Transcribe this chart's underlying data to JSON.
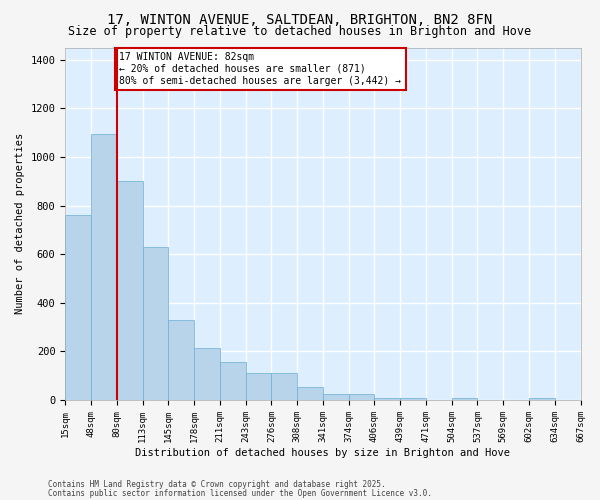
{
  "title": "17, WINTON AVENUE, SALTDEAN, BRIGHTON, BN2 8FN",
  "subtitle": "Size of property relative to detached houses in Brighton and Hove",
  "xlabel": "Distribution of detached houses by size in Brighton and Hove",
  "ylabel": "Number of detached properties",
  "footer_line1": "Contains HM Land Registry data © Crown copyright and database right 2025.",
  "footer_line2": "Contains public sector information licensed under the Open Government Licence v3.0.",
  "bins": [
    "15sqm",
    "48sqm",
    "80sqm",
    "113sqm",
    "145sqm",
    "178sqm",
    "211sqm",
    "243sqm",
    "276sqm",
    "308sqm",
    "341sqm",
    "374sqm",
    "406sqm",
    "439sqm",
    "471sqm",
    "504sqm",
    "537sqm",
    "569sqm",
    "602sqm",
    "634sqm",
    "667sqm"
  ],
  "values": [
    760,
    1095,
    900,
    630,
    330,
    215,
    155,
    110,
    110,
    55,
    25,
    25,
    10,
    10,
    0,
    10,
    0,
    0,
    10,
    0
  ],
  "bar_color": "#b8d4ea",
  "bar_edge_color": "#6aaed6",
  "background_color": "#ddeeff",
  "grid_color": "#ffffff",
  "red_line_x": 2,
  "annotation_text": "17 WINTON AVENUE: 82sqm\n← 20% of detached houses are smaller (871)\n80% of semi-detached houses are larger (3,442) →",
  "annotation_box_color": "#ffffff",
  "annotation_box_edge_color": "#cc0000",
  "red_line_color": "#cc0000",
  "ylim": [
    0,
    1450
  ],
  "yticks": [
    0,
    200,
    400,
    600,
    800,
    1000,
    1200,
    1400
  ],
  "fig_facecolor": "#f5f5f5",
  "title_fontsize": 10,
  "subtitle_fontsize": 8.5
}
